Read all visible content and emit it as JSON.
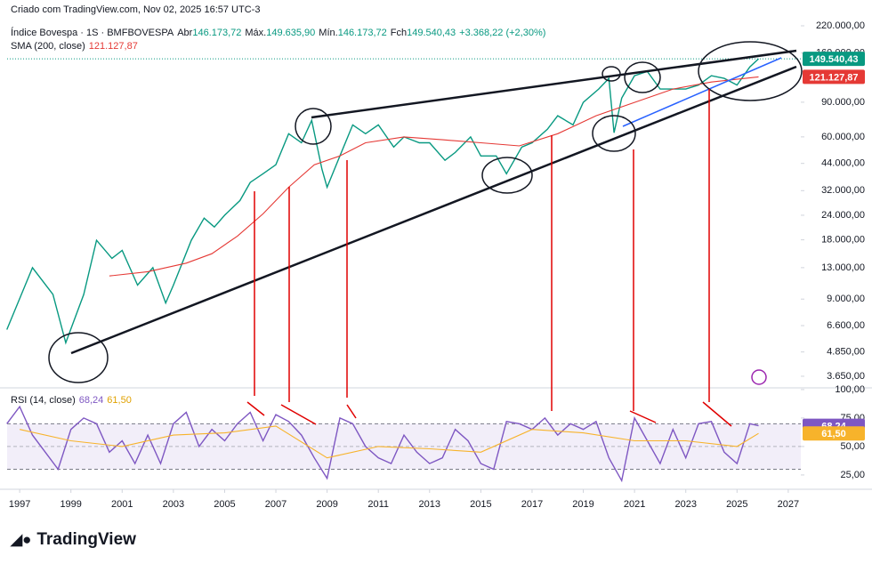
{
  "header": {
    "credit": "Criado com TradingView.com, Nov 02, 2025 16:57 UTC-3",
    "ohlc": [
      {
        "label": "Abr",
        "value": "146.173,72"
      },
      {
        "label": "Máx.",
        "value": "149.635,90"
      },
      {
        "label": "Mín.",
        "value": "146.173,72"
      },
      {
        "label": "Fch",
        "value": "149.540,43"
      }
    ],
    "change": "+3.368,22 (+2,30%)"
  },
  "footer": {
    "logo": "TradingView"
  },
  "chart_data": [
    {
      "type": "line",
      "log_y": true,
      "xlim": [
        1996.51,
        2027.49
      ],
      "xticks": [
        1997,
        1999,
        2001,
        2003,
        2005,
        2007,
        2009,
        2011,
        2013,
        2015,
        2017,
        2019,
        2021,
        2023,
        2025,
        2027
      ],
      "ylim": [
        3220,
        236600
      ],
      "yticks": [
        {
          "value": 220000,
          "label": "220.000,00"
        },
        {
          "value": 160000,
          "label": "160.000,00"
        },
        {
          "value": 90000,
          "label": "90.000,00"
        },
        {
          "value": 60000,
          "label": "60.000,00"
        },
        {
          "value": 44000,
          "label": "44.000,00"
        },
        {
          "value": 32000,
          "label": "32.000,00"
        },
        {
          "value": 24000,
          "label": "24.000,00"
        },
        {
          "value": 18000,
          "label": "18.000,00"
        },
        {
          "value": 13000,
          "label": "13.000,00"
        },
        {
          "value": 9000,
          "label": "9.000,00"
        },
        {
          "value": 6600,
          "label": "6.600,00"
        },
        {
          "value": 4850,
          "label": "4.850,00"
        },
        {
          "value": 3650,
          "label": "3.650,00"
        }
      ],
      "series": [
        {
          "name": "Índice Bovespa · 1S · BMFBOVESPA",
          "color": "#089981",
          "last_label": "149.540,43",
          "x": [
            1996.5,
            1997.5,
            1998.3,
            1998.8,
            1999.5,
            2000.0,
            2000.6,
            2001.0,
            2001.6,
            2002.2,
            2002.7,
            2003.0,
            2003.7,
            2004.2,
            2004.6,
            2005.0,
            2005.6,
            2006.0,
            2006.5,
            2007.0,
            2007.5,
            2008.0,
            2008.4,
            2008.8,
            2009.0,
            2009.5,
            2010.0,
            2010.5,
            2011.0,
            2011.6,
            2012.0,
            2012.6,
            2013.0,
            2013.6,
            2014.0,
            2014.6,
            2015.0,
            2015.6,
            2016.0,
            2016.6,
            2017.0,
            2017.6,
            2018.0,
            2018.6,
            2019.0,
            2019.6,
            2020.0,
            2020.2,
            2020.5,
            2021.0,
            2021.5,
            2022.0,
            2022.5,
            2023.0,
            2023.5,
            2024.0,
            2024.5,
            2025.0,
            2025.5,
            2025.84
          ],
          "values": [
            6300,
            13000,
            9500,
            5400,
            9500,
            17900,
            14500,
            15900,
            10600,
            13000,
            8600,
            10600,
            17900,
            23200,
            20900,
            24000,
            28500,
            35200,
            39000,
            43300,
            62300,
            56000,
            72800,
            41000,
            33300,
            48000,
            69000,
            62300,
            69000,
            53300,
            60000,
            56000,
            56000,
            45600,
            50000,
            60000,
            48000,
            48000,
            39000,
            53300,
            56000,
            65600,
            76800,
            69000,
            89800,
            105000,
            119000,
            63000,
            94400,
            122700,
            129000,
            105000,
            105000,
            105000,
            110000,
            122700,
            119000,
            110000,
            136000,
            149540.43
          ]
        },
        {
          "name": "SMA (200, close)",
          "color": "#e53935",
          "last_label": "121.127,87",
          "x": [
            2000.5,
            2002,
            2003.5,
            2004.5,
            2005.5,
            2006.5,
            2007.5,
            2008.5,
            2009.5,
            2010.5,
            2012,
            2013.5,
            2015,
            2016.5,
            2018,
            2019.5,
            2021,
            2022.5,
            2024,
            2025.84
          ],
          "values": [
            11800,
            12400,
            13700,
            15300,
            18800,
            24400,
            33300,
            43300,
            48000,
            56000,
            60000,
            58000,
            56000,
            54000,
            62300,
            76800,
            89800,
            105000,
            114000,
            121127.87
          ]
        }
      ]
    },
    {
      "type": "line",
      "ylim": [
        14,
        101.5
      ],
      "yticks": [
        {
          "value": 100,
          "label": "100,00"
        },
        {
          "value": 75,
          "label": "75,00"
        },
        {
          "value": 50,
          "label": "50,00"
        },
        {
          "value": 25,
          "label": "25,00"
        }
      ],
      "band": [
        30,
        70
      ],
      "midline": 50,
      "series": [
        {
          "name": "RSI (14, close)",
          "color": "#7e57c2",
          "last_label": "68,24",
          "x": [
            1996.5,
            1997,
            1997.5,
            1998,
            1998.5,
            1999,
            1999.5,
            2000,
            2000.5,
            2001,
            2001.5,
            2002,
            2002.5,
            2003,
            2003.5,
            2004,
            2004.5,
            2005,
            2005.5,
            2006,
            2006.5,
            2007,
            2007.5,
            2008,
            2008.5,
            2009,
            2009.5,
            2010,
            2010.5,
            2011,
            2011.5,
            2012,
            2012.5,
            2013,
            2013.5,
            2014,
            2014.5,
            2015,
            2015.5,
            2016,
            2016.5,
            2017,
            2017.5,
            2018,
            2018.5,
            2019,
            2019.5,
            2020,
            2020.5,
            2021,
            2021.5,
            2022,
            2022.5,
            2023,
            2023.5,
            2024,
            2024.5,
            2025,
            2025.5,
            2025.84
          ],
          "values": [
            70,
            85,
            60,
            45,
            30,
            65,
            75,
            70,
            45,
            55,
            35,
            60,
            35,
            70,
            80,
            50,
            65,
            55,
            70,
            80,
            55,
            78,
            72,
            60,
            40,
            22,
            75,
            70,
            50,
            40,
            35,
            60,
            45,
            35,
            40,
            65,
            55,
            35,
            30,
            72,
            70,
            65,
            75,
            60,
            70,
            65,
            72,
            40,
            20,
            75,
            55,
            35,
            65,
            40,
            70,
            72,
            45,
            35,
            70,
            68.24
          ]
        },
        {
          "color": "#f7b32b",
          "last_label": "61,50",
          "x": [
            1997,
            1999,
            2001,
            2003,
            2005,
            2007,
            2009,
            2011,
            2013,
            2015,
            2017,
            2019,
            2021,
            2023,
            2025,
            2025.84
          ],
          "values": [
            65,
            55,
            50,
            60,
            62,
            68,
            40,
            50,
            48,
            45,
            65,
            62,
            55,
            55,
            50,
            61.5
          ]
        }
      ]
    }
  ]
}
